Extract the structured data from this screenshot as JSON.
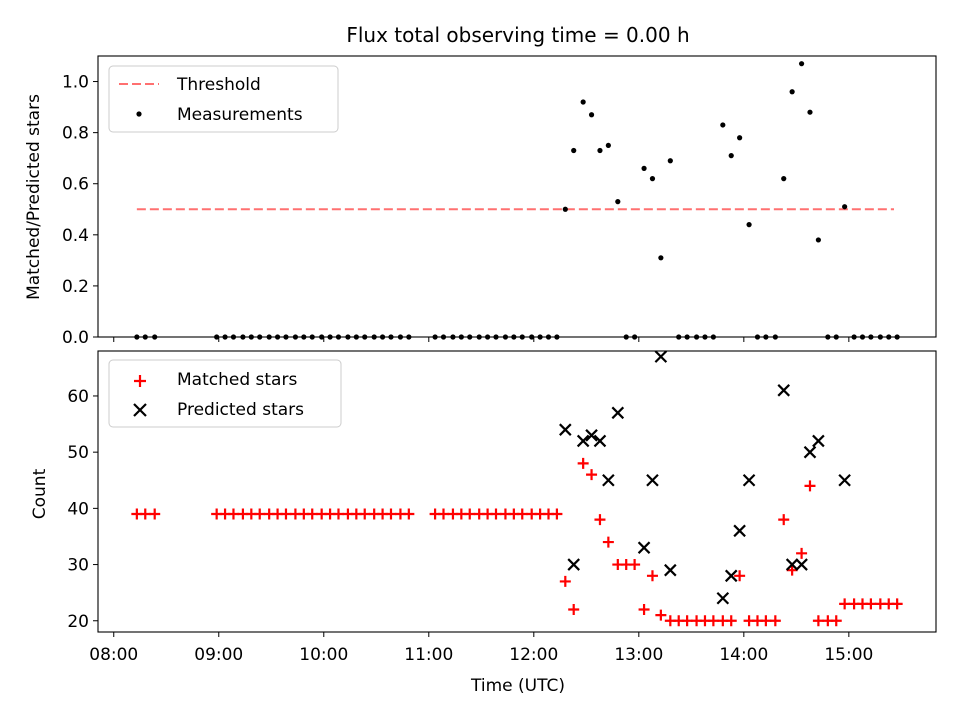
{
  "chart_data": {
    "title": "Flux total observing time = 0.00 h",
    "xlabel": "Time (UTC)",
    "x_ticks": [
      "08:00",
      "09:00",
      "10:00",
      "11:00",
      "12:00",
      "13:00",
      "14:00",
      "15:00"
    ],
    "x_tick_hours": [
      8,
      9,
      10,
      11,
      12,
      13,
      14,
      15
    ],
    "xlim": [
      7.85,
      15.83
    ],
    "colors": {
      "threshold": "#ff7070",
      "measurement": "#000000",
      "matched": "#ff0000",
      "predicted": "#000000"
    },
    "top": {
      "type": "scatter",
      "ylabel": "Matched/Predicted stars",
      "ylim": [
        0,
        1.1
      ],
      "yticks": [
        0.0,
        0.2,
        0.4,
        0.6,
        0.8,
        1.0
      ],
      "ytick_labels": [
        "0.0",
        "0.2",
        "0.4",
        "0.6",
        "0.8",
        "1.0"
      ],
      "legend": [
        "Threshold",
        "Measurements"
      ],
      "threshold": {
        "name": "Threshold",
        "y": 0.5,
        "x": [
          8.22,
          15.43
        ]
      },
      "measurements": [
        [
          8.22,
          0
        ],
        [
          8.3,
          0
        ],
        [
          8.39,
          0
        ],
        [
          8.98,
          0
        ],
        [
          9.06,
          0
        ],
        [
          9.14,
          0
        ],
        [
          9.23,
          0
        ],
        [
          9.31,
          0
        ],
        [
          9.39,
          0
        ],
        [
          9.48,
          0
        ],
        [
          9.56,
          0
        ],
        [
          9.64,
          0
        ],
        [
          9.73,
          0
        ],
        [
          9.81,
          0
        ],
        [
          9.89,
          0
        ],
        [
          9.98,
          0
        ],
        [
          10.06,
          0
        ],
        [
          10.14,
          0
        ],
        [
          10.23,
          0
        ],
        [
          10.31,
          0
        ],
        [
          10.39,
          0
        ],
        [
          10.48,
          0
        ],
        [
          10.56,
          0
        ],
        [
          10.64,
          0
        ],
        [
          10.73,
          0
        ],
        [
          10.81,
          0
        ],
        [
          11.06,
          0
        ],
        [
          11.14,
          0
        ],
        [
          11.23,
          0
        ],
        [
          11.31,
          0
        ],
        [
          11.39,
          0
        ],
        [
          11.48,
          0
        ],
        [
          11.56,
          0
        ],
        [
          11.64,
          0
        ],
        [
          11.73,
          0
        ],
        [
          11.81,
          0
        ],
        [
          11.89,
          0
        ],
        [
          11.98,
          0
        ],
        [
          12.06,
          0
        ],
        [
          12.14,
          0
        ],
        [
          12.22,
          0
        ],
        [
          12.3,
          0.5
        ],
        [
          12.38,
          0.73
        ],
        [
          12.47,
          0.92
        ],
        [
          12.55,
          0.87
        ],
        [
          12.63,
          0.73
        ],
        [
          12.71,
          0.75
        ],
        [
          12.8,
          0.53
        ],
        [
          12.88,
          0
        ],
        [
          12.96,
          0
        ],
        [
          13.05,
          0.66
        ],
        [
          13.13,
          0.62
        ],
        [
          13.21,
          0.31
        ],
        [
          13.3,
          0.69
        ],
        [
          13.38,
          0
        ],
        [
          13.46,
          0
        ],
        [
          13.55,
          0
        ],
        [
          13.63,
          0
        ],
        [
          13.71,
          0
        ],
        [
          13.8,
          0.83
        ],
        [
          13.88,
          0.71
        ],
        [
          13.96,
          0.78
        ],
        [
          14.05,
          0.44
        ],
        [
          14.13,
          0
        ],
        [
          14.21,
          0
        ],
        [
          14.3,
          0
        ],
        [
          14.38,
          0.62
        ],
        [
          14.46,
          0.96
        ],
        [
          14.55,
          1.07
        ],
        [
          14.63,
          0.88
        ],
        [
          14.71,
          0.38
        ],
        [
          14.8,
          0
        ],
        [
          14.88,
          0
        ],
        [
          14.96,
          0.51
        ],
        [
          15.05,
          0
        ],
        [
          15.13,
          0
        ],
        [
          15.21,
          0
        ],
        [
          15.3,
          0
        ],
        [
          15.38,
          0
        ],
        [
          15.46,
          0
        ]
      ]
    },
    "bottom": {
      "type": "scatter",
      "ylabel": "Count",
      "ylim": [
        18,
        68
      ],
      "yticks": [
        20,
        30,
        40,
        50,
        60
      ],
      "ytick_labels": [
        "20",
        "30",
        "40",
        "50",
        "60"
      ],
      "legend": [
        "Matched stars",
        "Predicted stars"
      ],
      "matched": [
        [
          8.22,
          39
        ],
        [
          8.3,
          39
        ],
        [
          8.39,
          39
        ],
        [
          8.98,
          39
        ],
        [
          9.06,
          39
        ],
        [
          9.14,
          39
        ],
        [
          9.23,
          39
        ],
        [
          9.31,
          39
        ],
        [
          9.39,
          39
        ],
        [
          9.48,
          39
        ],
        [
          9.56,
          39
        ],
        [
          9.64,
          39
        ],
        [
          9.73,
          39
        ],
        [
          9.81,
          39
        ],
        [
          9.89,
          39
        ],
        [
          9.98,
          39
        ],
        [
          10.06,
          39
        ],
        [
          10.14,
          39
        ],
        [
          10.23,
          39
        ],
        [
          10.31,
          39
        ],
        [
          10.39,
          39
        ],
        [
          10.48,
          39
        ],
        [
          10.56,
          39
        ],
        [
          10.64,
          39
        ],
        [
          10.73,
          39
        ],
        [
          10.81,
          39
        ],
        [
          11.06,
          39
        ],
        [
          11.14,
          39
        ],
        [
          11.23,
          39
        ],
        [
          11.31,
          39
        ],
        [
          11.39,
          39
        ],
        [
          11.48,
          39
        ],
        [
          11.56,
          39
        ],
        [
          11.64,
          39
        ],
        [
          11.73,
          39
        ],
        [
          11.81,
          39
        ],
        [
          11.89,
          39
        ],
        [
          11.98,
          39
        ],
        [
          12.06,
          39
        ],
        [
          12.14,
          39
        ],
        [
          12.22,
          39
        ],
        [
          12.3,
          27
        ],
        [
          12.38,
          22
        ],
        [
          12.47,
          48
        ],
        [
          12.55,
          46
        ],
        [
          12.63,
          38
        ],
        [
          12.71,
          34
        ],
        [
          12.8,
          30
        ],
        [
          12.88,
          30
        ],
        [
          12.96,
          30
        ],
        [
          13.05,
          22
        ],
        [
          13.13,
          28
        ],
        [
          13.21,
          21
        ],
        [
          13.3,
          20
        ],
        [
          13.38,
          20
        ],
        [
          13.46,
          20
        ],
        [
          13.55,
          20
        ],
        [
          13.63,
          20
        ],
        [
          13.71,
          20
        ],
        [
          13.8,
          20
        ],
        [
          13.88,
          20
        ],
        [
          13.96,
          28
        ],
        [
          14.05,
          20
        ],
        [
          14.13,
          20
        ],
        [
          14.21,
          20
        ],
        [
          14.3,
          20
        ],
        [
          14.38,
          38
        ],
        [
          14.46,
          29
        ],
        [
          14.55,
          32
        ],
        [
          14.63,
          44
        ],
        [
          14.71,
          20
        ],
        [
          14.8,
          20
        ],
        [
          14.88,
          20
        ],
        [
          14.96,
          23
        ],
        [
          15.05,
          23
        ],
        [
          15.13,
          23
        ],
        [
          15.21,
          23
        ],
        [
          15.3,
          23
        ],
        [
          15.38,
          23
        ],
        [
          15.46,
          23
        ]
      ],
      "predicted": [
        [
          12.3,
          54
        ],
        [
          12.38,
          30
        ],
        [
          12.47,
          52
        ],
        [
          12.55,
          53
        ],
        [
          12.63,
          52
        ],
        [
          12.71,
          45
        ],
        [
          12.8,
          57
        ],
        [
          13.05,
          33
        ],
        [
          13.13,
          45
        ],
        [
          13.21,
          67
        ],
        [
          13.3,
          29
        ],
        [
          13.8,
          24
        ],
        [
          13.88,
          28
        ],
        [
          13.96,
          36
        ],
        [
          14.05,
          45
        ],
        [
          14.38,
          61
        ],
        [
          14.46,
          30
        ],
        [
          14.55,
          30
        ],
        [
          14.63,
          50
        ],
        [
          14.71,
          52
        ],
        [
          14.96,
          45
        ]
      ]
    }
  }
}
